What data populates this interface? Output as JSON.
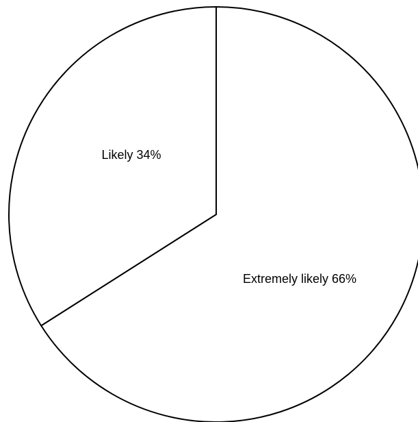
{
  "chart_data": {
    "type": "pie",
    "slices": [
      {
        "label": "Extremely likely",
        "value": 66,
        "display": "Extremely likely 66%",
        "color": "#ffffff"
      },
      {
        "label": "Likely",
        "value": 34,
        "display": "Likely 34%",
        "color": "#ffffff"
      }
    ],
    "start": "12 o'clock",
    "direction": "clockwise",
    "legend": "none",
    "outline_color": "#000000"
  }
}
